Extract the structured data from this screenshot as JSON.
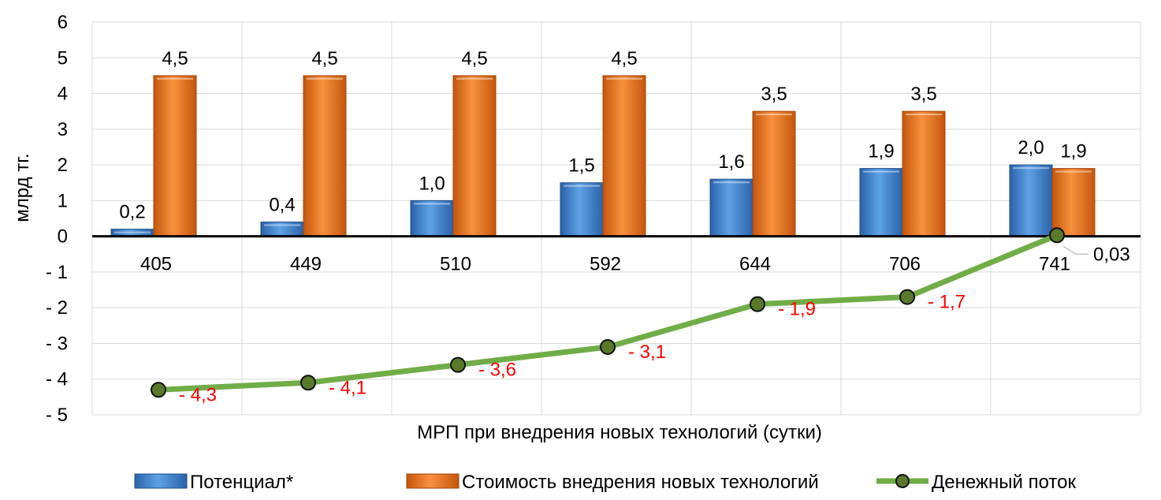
{
  "chart_data": {
    "type": "bar",
    "title": "",
    "xlabel": "МРП при внедрения новых технологий (сутки)",
    "ylabel": "млрд тг.",
    "ylim": [
      -5,
      6
    ],
    "yticks": [
      6,
      5,
      4,
      3,
      2,
      1,
      0,
      -1,
      -2,
      -3,
      -4,
      -5
    ],
    "ytick_labels": [
      "6",
      "5",
      "4",
      "3",
      "2",
      "1",
      "0",
      "- 1",
      "- 2",
      "- 3",
      "- 4",
      "- 5"
    ],
    "grid": true,
    "legend_position": "bottom",
    "categories": [
      "405",
      "449",
      "510",
      "592",
      "644",
      "706",
      "741"
    ],
    "series": [
      {
        "name": "Потенциал*",
        "kind": "bar",
        "color": "#4a8ed8",
        "values": [
          0.2,
          0.4,
          1.0,
          1.5,
          1.6,
          1.9,
          2.0
        ],
        "labels": [
          "0,2",
          "0,4",
          "1,0",
          "1,5",
          "1,6",
          "1,9",
          "2,0"
        ]
      },
      {
        "name": "Стоимость внедрения новых технологий",
        "kind": "bar",
        "color": "#f0771c",
        "values": [
          4.5,
          4.5,
          4.5,
          4.5,
          3.5,
          3.5,
          1.9
        ],
        "labels": [
          "4,5",
          "4,5",
          "4,5",
          "4,5",
          "3,5",
          "3,5",
          "1,9"
        ]
      },
      {
        "name": "Денежный поток",
        "kind": "line",
        "color": "#70ad47",
        "values": [
          -4.3,
          -4.1,
          -3.6,
          -3.1,
          -1.9,
          -1.7,
          0.03
        ],
        "labels": [
          "- 4,3",
          "- 4,1",
          "- 3,6",
          "- 3,1",
          "- 1,9",
          "- 1,7",
          "0,03"
        ]
      }
    ],
    "colors": {
      "negative_tick": "#ff0000",
      "grid": "#d9d9d9",
      "marker_fill": "#5a7a2a"
    }
  }
}
